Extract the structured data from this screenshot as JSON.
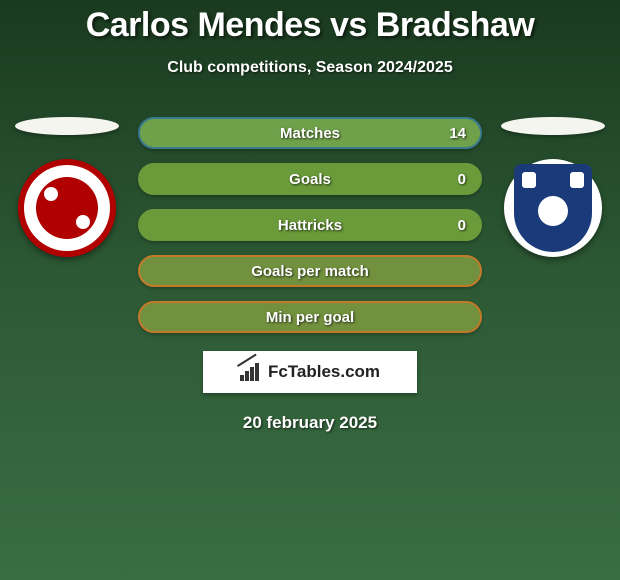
{
  "title": "Carlos Mendes vs Bradshaw",
  "subtitle": "Club competitions, Season 2024/2025",
  "date": "20 february 2025",
  "brand": "FcTables.com",
  "colors": {
    "bar_border_blue": "#3a7a8e",
    "bar_fill_blue": "#74a64a",
    "bar_border_green": "#6a9a3a",
    "bar_fill_green": "#6a9a3a",
    "bar_border_orange": "#c27a2a",
    "bar_fill_orange": "#7a8a3e"
  },
  "left_team": {
    "crest_primary": "#b00000",
    "crest_secondary": "#ffffff"
  },
  "right_team": {
    "crest_primary": "#1a3a7a",
    "crest_secondary": "#ffffff"
  },
  "stats": [
    {
      "label": "Matches",
      "value": "14",
      "border": "#3a7a8e",
      "fill": "#6fa04a"
    },
    {
      "label": "Goals",
      "value": "0",
      "border": "#6a9a3a",
      "fill": "#6a9a3a"
    },
    {
      "label": "Hattricks",
      "value": "0",
      "border": "#6a9a3a",
      "fill": "#6a9a3a"
    },
    {
      "label": "Goals per match",
      "value": "",
      "border": "#c27a2a",
      "fill": "#72913e"
    },
    {
      "label": "Min per goal",
      "value": "",
      "border": "#c27a2a",
      "fill": "#72913e"
    }
  ]
}
